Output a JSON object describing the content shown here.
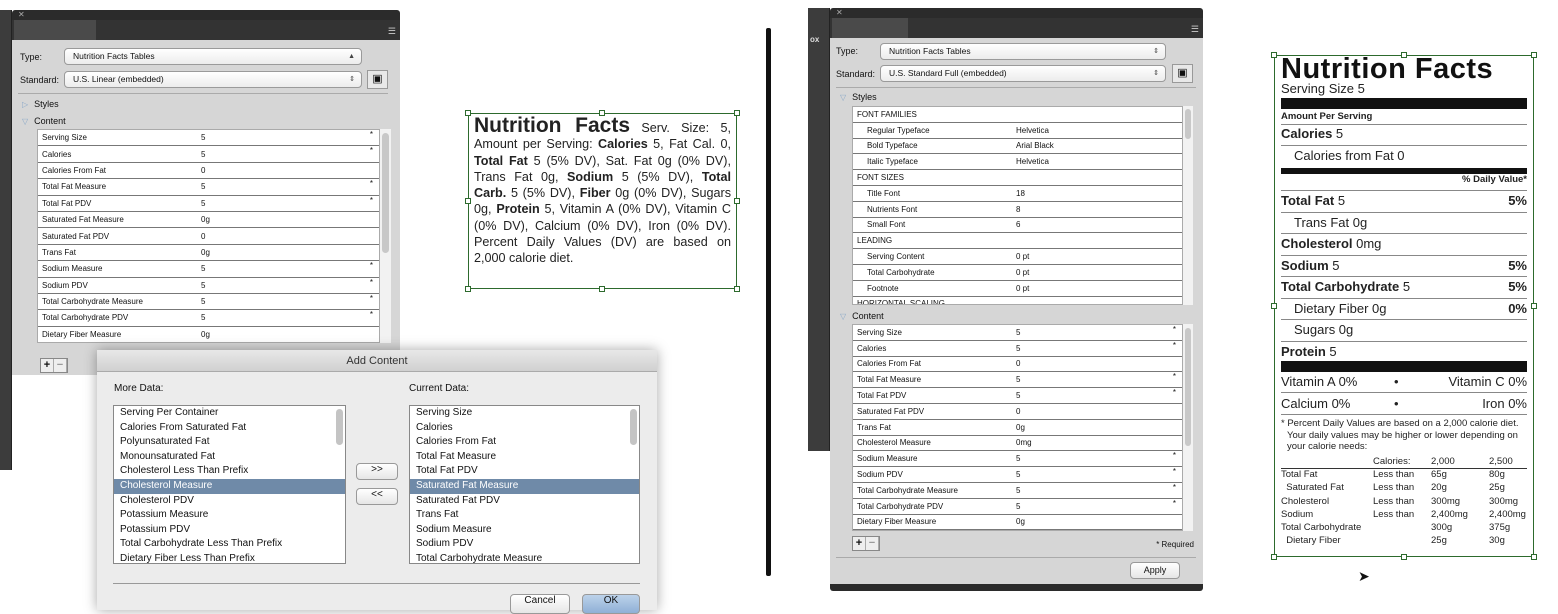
{
  "left_panel": {
    "type_label": "Type:",
    "type_value": "Nutrition Facts Tables",
    "standard_label": "Standard:",
    "standard_value": "U.S. Linear (embedded)",
    "styles_label": "Styles",
    "content_label": "Content",
    "rows": [
      {
        "name": "Serving Size",
        "value": "5",
        "req": "*"
      },
      {
        "name": "Calories",
        "value": "5",
        "req": "*"
      },
      {
        "name": "Calories From Fat",
        "value": "0",
        "req": ""
      },
      {
        "name": "Total Fat Measure",
        "value": "5",
        "req": "*"
      },
      {
        "name": "Total Fat PDV",
        "value": "5",
        "req": "*"
      },
      {
        "name": "Saturated Fat Measure",
        "value": "0g",
        "req": ""
      },
      {
        "name": "Saturated Fat PDV",
        "value": "0",
        "req": ""
      },
      {
        "name": "Trans Fat",
        "value": "0g",
        "req": ""
      },
      {
        "name": "Sodium Measure",
        "value": "5",
        "req": "*"
      },
      {
        "name": "Sodium PDV",
        "value": "5",
        "req": "*"
      },
      {
        "name": "Total Carbohydrate Measure",
        "value": "5",
        "req": "*"
      },
      {
        "name": "Total Carbohydrate PDV",
        "value": "5",
        "req": "*"
      },
      {
        "name": "Dietary Fiber Measure",
        "value": "0g",
        "req": ""
      }
    ],
    "add": "+",
    "remove": "−"
  },
  "dialog": {
    "title": "Add Content",
    "more_label": "More Data:",
    "current_label": "Current Data:",
    "more": [
      "Serving Per Container",
      "Calories From Saturated Fat",
      "Polyunsaturated Fat",
      "Monounsaturated Fat",
      "Cholesterol Less Than Prefix",
      "Cholesterol Measure",
      "Cholesterol PDV",
      "Potassium Measure",
      "Potassium PDV",
      "Total Carbohydrate Less Than Prefix",
      "Dietary Fiber Less Than Prefix"
    ],
    "more_selected": 5,
    "current": [
      "Serving Size",
      "Calories",
      "Calories From Fat",
      "Total Fat Measure",
      "Total Fat PDV",
      "Saturated Fat Measure",
      "Saturated Fat PDV",
      "Trans Fat",
      "Sodium Measure",
      "Sodium PDV",
      "Total Carbohydrate Measure"
    ],
    "current_selected": 5,
    "add_btn": ">>",
    "remove_btn": "<<",
    "cancel": "Cancel",
    "ok": "OK"
  },
  "linear_label": {
    "title": "Nutrition Facts",
    "parts": [
      " Serv. Size: 5, Amount per Serving: ",
      "Calories",
      " 5, Fat Cal. 0, ",
      "Total Fat",
      " 5 (5% DV), Sat. Fat 0g (0% DV), Trans Fat 0g, ",
      "Sodium",
      " 5 (5% DV), ",
      "Total Carb.",
      " 5 (5% DV), ",
      "Fiber",
      " 0g (0% DV), Sugars 0g, ",
      "Protein",
      " 5, Vitamin A (0% DV), Vitamin C (0% DV), Calcium (0% DV), Iron (0% DV). Percent Daily Values (DV) are based on 2,000 calorie diet."
    ]
  },
  "right_panel": {
    "side_label": "ox",
    "type_label": "Type:",
    "type_value": "Nutrition Facts Tables",
    "standard_label": "Standard:",
    "standard_value": "U.S. Standard Full (embedded)",
    "styles_label": "Styles",
    "content_label": "Content",
    "style_rows": [
      {
        "name": "FONT FAMILIES",
        "value": "",
        "head": true
      },
      {
        "name": "Regular Typeface",
        "value": "Helvetica"
      },
      {
        "name": "Bold Typeface",
        "value": "Arial Black"
      },
      {
        "name": "Italic Typeface",
        "value": "Helvetica"
      },
      {
        "name": "FONT SIZES",
        "value": "",
        "head": true
      },
      {
        "name": "Title Font",
        "value": "18"
      },
      {
        "name": "Nutrients Font",
        "value": "8"
      },
      {
        "name": "Small Font",
        "value": "6"
      },
      {
        "name": "LEADING",
        "value": "",
        "head": true
      },
      {
        "name": "Serving Content",
        "value": "0 pt"
      },
      {
        "name": "Total Carbohydrate",
        "value": "0 pt"
      },
      {
        "name": "Footnote",
        "value": "0 pt"
      },
      {
        "name": "HORIZONTAL SCALING",
        "value": "",
        "head": true
      }
    ],
    "rows": [
      {
        "name": "Serving Size",
        "value": "5",
        "req": "*"
      },
      {
        "name": "Calories",
        "value": "5",
        "req": "*"
      },
      {
        "name": "Calories From Fat",
        "value": "0",
        "req": ""
      },
      {
        "name": "Total Fat Measure",
        "value": "5",
        "req": "*"
      },
      {
        "name": "Total Fat PDV",
        "value": "5",
        "req": "*"
      },
      {
        "name": "Saturated Fat PDV",
        "value": "0",
        "req": ""
      },
      {
        "name": "Trans Fat",
        "value": "0g",
        "req": ""
      },
      {
        "name": "Cholesterol Measure",
        "value": "0mg",
        "req": ""
      },
      {
        "name": "Sodium Measure",
        "value": "5",
        "req": "*"
      },
      {
        "name": "Sodium PDV",
        "value": "5",
        "req": "*"
      },
      {
        "name": "Total Carbohydrate Measure",
        "value": "5",
        "req": "*"
      },
      {
        "name": "Total Carbohydrate PDV",
        "value": "5",
        "req": "*"
      },
      {
        "name": "Dietary Fiber Measure",
        "value": "0g",
        "req": ""
      }
    ],
    "add": "+",
    "remove": "−",
    "required_note": "* Required",
    "apply": "Apply"
  },
  "full_label": {
    "title": "Nutrition Facts",
    "serving": "Serving Size 5",
    "amount": "Amount Per Serving",
    "calories_b": "Calories",
    "calories_v": " 5",
    "cal_fat": "Calories from Fat 0",
    "dv_head": "% Daily Value*",
    "nutrients": [
      {
        "b": "Total Fat",
        "v": " 5",
        "pct": "5%",
        "indent": false
      },
      {
        "b": "",
        "v": "Trans Fat 0g",
        "pct": "",
        "indent": true
      },
      {
        "b": "Cholesterol",
        "v": " 0mg",
        "pct": "",
        "indent": false
      },
      {
        "b": "Sodium",
        "v": " 5",
        "pct": "5%",
        "indent": false
      },
      {
        "b": "Total Carbohydrate",
        "v": " 5",
        "pct": "5%",
        "indent": false
      },
      {
        "b": "",
        "v": "Dietary Fiber 0g",
        "pct": "0%",
        "indent": true
      },
      {
        "b": "",
        "v": "Sugars 0g",
        "pct": "",
        "indent": true
      },
      {
        "b": "Protein",
        "v": " 5",
        "pct": "",
        "indent": false
      }
    ],
    "vit_a": "Vitamin A 0%",
    "vit_c": "Vitamin C 0%",
    "calcium": "Calcium 0%",
    "iron": "Iron 0%",
    "bullet": "•",
    "footnote": "* Percent Daily Values are based on a 2,000 calorie diet. Your daily values may be higher or lower depending on your calorie needs:",
    "table": [
      [
        "",
        "Calories:",
        "2,000",
        "2,500"
      ],
      [
        "Total Fat",
        "Less than",
        "65g",
        "80g"
      ],
      [
        "  Saturated Fat",
        "Less than",
        "20g",
        "25g"
      ],
      [
        "Cholesterol",
        "Less than",
        "300mg",
        "300mg"
      ],
      [
        "Sodium",
        "Less than",
        "2,400mg",
        "2,400mg"
      ],
      [
        "Total Carbohydrate",
        "",
        "300g",
        "375g"
      ],
      [
        "  Dietary Fiber",
        "",
        "25g",
        "30g"
      ]
    ]
  }
}
